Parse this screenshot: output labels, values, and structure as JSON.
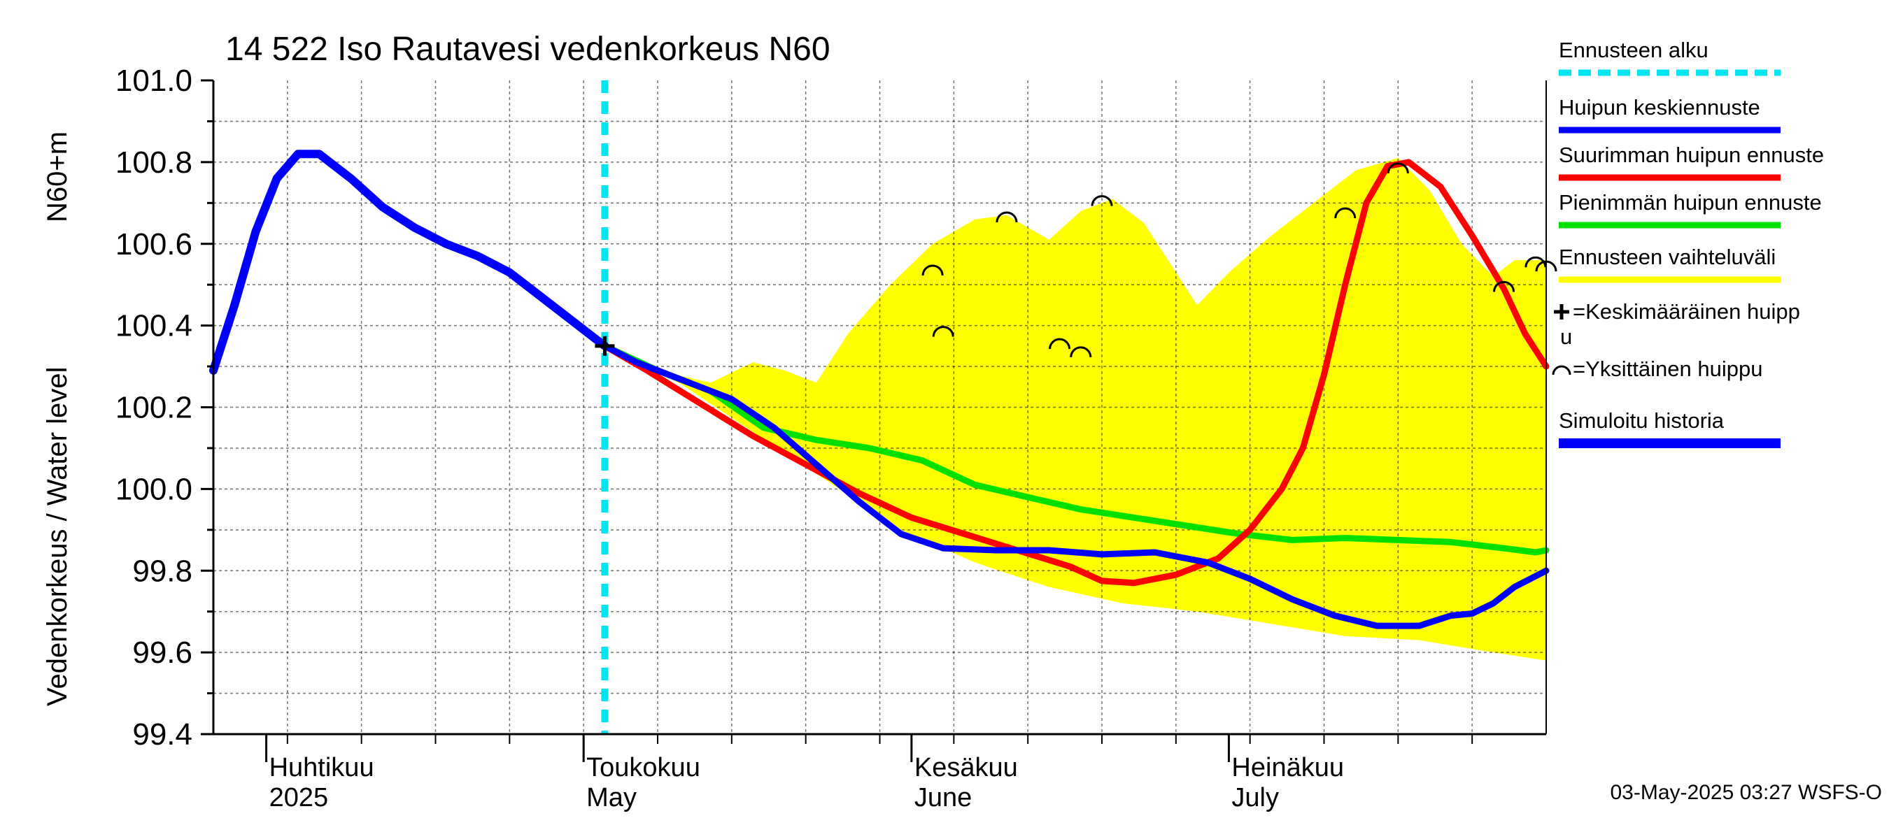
{
  "chart_data": {
    "type": "line",
    "title": "14 522 Iso Rautavesi vedenkorkeus N60",
    "ylabel_main": "Vedenkorkeus / Water level",
    "ylabel_unit": "N60+m",
    "footer": "03-May-2025 03:27 WSFS-O",
    "ylim": [
      99.4,
      101.0
    ],
    "yticks": [
      "101.0",
      "100.8",
      "100.6",
      "100.4",
      "100.2",
      "100.0",
      "99.8",
      "99.6",
      "99.4"
    ],
    "xlim": [
      "2025-03-27",
      "2025-07-31"
    ],
    "month_labels": [
      {
        "fi": "Huhtikuu",
        "en": "2025",
        "date": "2025-04-01"
      },
      {
        "fi": "Toukokuu",
        "en": "May",
        "date": "2025-05-01"
      },
      {
        "fi": "Kesäkuu",
        "en": "June",
        "date": "2025-06-01"
      },
      {
        "fi": "Heinäkuu",
        "en": "July",
        "date": "2025-07-01"
      }
    ],
    "grid": true,
    "forecast_start": "2025-05-03",
    "series": [
      {
        "name": "Simuloitu historia",
        "color": "#0000ff",
        "points": [
          [
            "2025-03-27",
            100.29
          ],
          [
            "2025-03-29",
            100.45
          ],
          [
            "2025-03-31",
            100.63
          ],
          [
            "2025-04-02",
            100.76
          ],
          [
            "2025-04-04",
            100.82
          ],
          [
            "2025-04-06",
            100.82
          ],
          [
            "2025-04-09",
            100.76
          ],
          [
            "2025-04-12",
            100.69
          ],
          [
            "2025-04-15",
            100.64
          ],
          [
            "2025-04-18",
            100.6
          ],
          [
            "2025-04-21",
            100.57
          ],
          [
            "2025-04-24",
            100.53
          ],
          [
            "2025-04-27",
            100.47
          ],
          [
            "2025-04-30",
            100.41
          ],
          [
            "2025-05-02",
            100.37
          ],
          [
            "2025-05-03",
            100.35
          ]
        ]
      },
      {
        "name": "Huipun keskiennuste",
        "color": "#0000ff",
        "points": [
          [
            "2025-05-03",
            100.35
          ],
          [
            "2025-05-06",
            100.31
          ],
          [
            "2025-05-10",
            100.27
          ],
          [
            "2025-05-15",
            100.22
          ],
          [
            "2025-05-19",
            100.15
          ],
          [
            "2025-05-23",
            100.06
          ],
          [
            "2025-05-27",
            99.97
          ],
          [
            "2025-05-31",
            99.89
          ],
          [
            "2025-06-04",
            99.855
          ],
          [
            "2025-06-09",
            99.85
          ],
          [
            "2025-06-14",
            99.85
          ],
          [
            "2025-06-19",
            99.84
          ],
          [
            "2025-06-24",
            99.845
          ],
          [
            "2025-06-29",
            99.82
          ],
          [
            "2025-07-03",
            99.78
          ],
          [
            "2025-07-07",
            99.73
          ],
          [
            "2025-07-11",
            99.69
          ],
          [
            "2025-07-15",
            99.665
          ],
          [
            "2025-07-19",
            99.665
          ],
          [
            "2025-07-22",
            99.69
          ],
          [
            "2025-07-24",
            99.695
          ],
          [
            "2025-07-26",
            99.72
          ],
          [
            "2025-07-28",
            99.76
          ],
          [
            "2025-07-31",
            99.8
          ]
        ]
      },
      {
        "name": "Suurimman huipun ennuste",
        "color": "#ff0000",
        "points": [
          [
            "2025-05-03",
            100.35
          ],
          [
            "2025-05-07",
            100.29
          ],
          [
            "2025-05-12",
            100.21
          ],
          [
            "2025-05-17",
            100.13
          ],
          [
            "2025-05-22",
            100.06
          ],
          [
            "2025-05-27",
            99.99
          ],
          [
            "2025-06-01",
            99.93
          ],
          [
            "2025-06-06",
            99.89
          ],
          [
            "2025-06-11",
            99.85
          ],
          [
            "2025-06-16",
            99.81
          ],
          [
            "2025-06-19",
            99.775
          ],
          [
            "2025-06-22",
            99.77
          ],
          [
            "2025-06-26",
            99.79
          ],
          [
            "2025-06-30",
            99.83
          ],
          [
            "2025-07-03",
            99.9
          ],
          [
            "2025-07-06",
            100.0
          ],
          [
            "2025-07-08",
            100.1
          ],
          [
            "2025-07-10",
            100.28
          ],
          [
            "2025-07-12",
            100.5
          ],
          [
            "2025-07-14",
            100.7
          ],
          [
            "2025-07-16",
            100.79
          ],
          [
            "2025-07-18",
            100.8
          ],
          [
            "2025-07-21",
            100.74
          ],
          [
            "2025-07-24",
            100.62
          ],
          [
            "2025-07-27",
            100.49
          ],
          [
            "2025-07-29",
            100.38
          ],
          [
            "2025-07-31",
            100.3
          ]
        ]
      },
      {
        "name": "Pienimmän huipun ennuste",
        "color": "#00e000",
        "points": [
          [
            "2025-05-03",
            100.35
          ],
          [
            "2025-05-08",
            100.29
          ],
          [
            "2025-05-13",
            100.24
          ],
          [
            "2025-05-18",
            100.15
          ],
          [
            "2025-05-23",
            100.12
          ],
          [
            "2025-05-28",
            100.1
          ],
          [
            "2025-06-02",
            100.07
          ],
          [
            "2025-06-07",
            100.01
          ],
          [
            "2025-06-12",
            99.98
          ],
          [
            "2025-06-17",
            99.95
          ],
          [
            "2025-06-22",
            99.93
          ],
          [
            "2025-06-27",
            99.91
          ],
          [
            "2025-07-02",
            99.89
          ],
          [
            "2025-07-07",
            99.875
          ],
          [
            "2025-07-12",
            99.88
          ],
          [
            "2025-07-17",
            99.875
          ],
          [
            "2025-07-22",
            99.87
          ],
          [
            "2025-07-27",
            99.855
          ],
          [
            "2025-07-30",
            99.845
          ],
          [
            "2025-07-31",
            99.85
          ]
        ]
      }
    ],
    "range_band": {
      "name": "Ennusteen vaihteluväli",
      "color": "#ffff00",
      "upper": [
        [
          "2025-05-03",
          100.35
        ],
        [
          "2025-05-08",
          100.29
        ],
        [
          "2025-05-13",
          100.26
        ],
        [
          "2025-05-17",
          100.31
        ],
        [
          "2025-05-20",
          100.29
        ],
        [
          "2025-05-23",
          100.26
        ],
        [
          "2025-05-26",
          100.38
        ],
        [
          "2025-05-30",
          100.5
        ],
        [
          "2025-06-03",
          100.6
        ],
        [
          "2025-06-07",
          100.66
        ],
        [
          "2025-06-10",
          100.67
        ],
        [
          "2025-06-14",
          100.61
        ],
        [
          "2025-06-17",
          100.68
        ],
        [
          "2025-06-20",
          100.71
        ],
        [
          "2025-06-23",
          100.65
        ],
        [
          "2025-06-26",
          100.53
        ],
        [
          "2025-06-28",
          100.45
        ],
        [
          "2025-07-01",
          100.53
        ],
        [
          "2025-07-05",
          100.62
        ],
        [
          "2025-07-09",
          100.7
        ],
        [
          "2025-07-13",
          100.78
        ],
        [
          "2025-07-17",
          100.81
        ],
        [
          "2025-07-20",
          100.73
        ],
        [
          "2025-07-23",
          100.6
        ],
        [
          "2025-07-26",
          100.52
        ],
        [
          "2025-07-28",
          100.56
        ],
        [
          "2025-07-31",
          100.56
        ]
      ],
      "lower": [
        [
          "2025-05-03",
          100.35
        ],
        [
          "2025-05-10",
          100.26
        ],
        [
          "2025-05-17",
          100.14
        ],
        [
          "2025-05-24",
          100.02
        ],
        [
          "2025-05-31",
          99.9
        ],
        [
          "2025-06-07",
          99.82
        ],
        [
          "2025-06-14",
          99.76
        ],
        [
          "2025-06-21",
          99.72
        ],
        [
          "2025-06-28",
          99.7
        ],
        [
          "2025-07-05",
          99.67
        ],
        [
          "2025-07-12",
          99.64
        ],
        [
          "2025-07-19",
          99.63
        ],
        [
          "2025-07-26",
          99.6
        ],
        [
          "2025-07-31",
          99.58
        ]
      ]
    },
    "mean_peak": {
      "date": "2025-05-03",
      "value": 100.35
    },
    "individual_peaks": [
      [
        "2025-06-03",
        100.55
      ],
      [
        "2025-06-04",
        100.4
      ],
      [
        "2025-06-10",
        100.68
      ],
      [
        "2025-06-15",
        100.37
      ],
      [
        "2025-06-17",
        100.35
      ],
      [
        "2025-06-19",
        100.72
      ],
      [
        "2025-07-12",
        100.69
      ],
      [
        "2025-07-17",
        100.8
      ],
      [
        "2025-07-27",
        100.51
      ],
      [
        "2025-07-30",
        100.57
      ],
      [
        "2025-07-31",
        100.56
      ]
    ],
    "legend": [
      {
        "label": "Ennusteen alku",
        "color": "#00e5ee",
        "style": "dashed"
      },
      {
        "label": "Huipun keskiennuste",
        "color": "#0000ff",
        "style": "line"
      },
      {
        "label": "Suurimman huipun ennuste",
        "color": "#ff0000",
        "style": "line"
      },
      {
        "label": "Pienimmän huipun ennuste",
        "color": "#00e000",
        "style": "line"
      },
      {
        "label": "Ennusteen vaihteluväli",
        "color": "#ffff00",
        "style": "line"
      },
      {
        "label": "=Keskimääräinen huipp",
        "label2": "u",
        "style": "plus"
      },
      {
        "label": "=Yksittäinen huippu",
        "style": "arc"
      },
      {
        "label": "Simuloitu historia",
        "color": "#0000ff",
        "style": "thick"
      }
    ]
  }
}
